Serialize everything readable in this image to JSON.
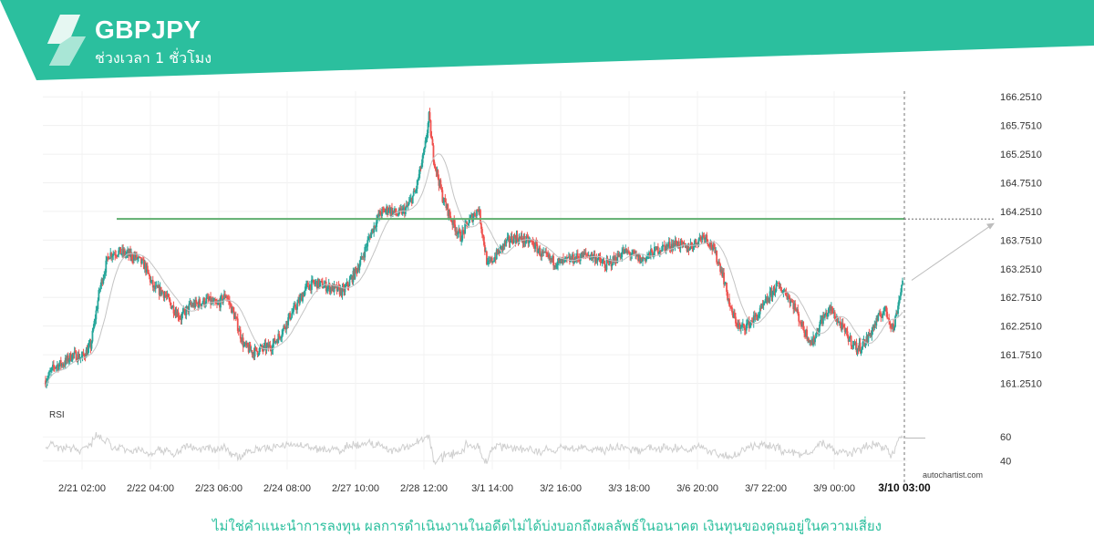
{
  "header": {
    "symbol": "GBPJPY",
    "timeframe": "ช่วงเวลา 1 ชั่วโมง"
  },
  "colors": {
    "brand": "#2bbf9e",
    "candle_up": "#26a69a",
    "candle_down": "#ef5350",
    "support_resistance_line": "#5fae6f",
    "moving_average": "#c4c4c4",
    "rsi_line": "#cfcfcf",
    "projection": "#bdbdbd"
  },
  "watermark": "autochartist.com",
  "disclaimer": "ไม่ใช่คำแนะนำการลงทุน ผลการดำเนินงานในอดีตไม่ได้บ่งบอกถึงผลลัพธ์ในอนาคต เงินทุนของคุณอยู่ในความเสี่ยง",
  "chart_data": {
    "type": "candlestick",
    "symbol": "GBPJPY",
    "timeframe": "1 hour",
    "ylim": [
      161.1,
      166.35
    ],
    "y_ticks": [
      "166.2510",
      "165.7510",
      "165.2510",
      "164.7510",
      "164.2510",
      "163.7510",
      "163.2510",
      "162.7510",
      "162.2510",
      "161.7510",
      "161.2510"
    ],
    "x_ticks": [
      "2/21 02:00",
      "2/22 04:00",
      "2/23 06:00",
      "2/24 08:00",
      "2/27 10:00",
      "2/28 12:00",
      "3/1 14:00",
      "3/2 16:00",
      "3/3 18:00",
      "3/6 20:00",
      "3/7 22:00",
      "3/9 00:00"
    ],
    "current_time_label": "3/10 03:00",
    "horizontal_level": 164.12,
    "projection": {
      "from": 163.05,
      "to": 164.05
    },
    "price_path": [
      [
        0,
        161.3
      ],
      [
        10,
        161.55
      ],
      [
        20,
        161.6
      ],
      [
        30,
        161.75
      ],
      [
        40,
        161.7
      ],
      [
        50,
        161.9
      ],
      [
        60,
        162.9
      ],
      [
        70,
        163.5
      ],
      [
        80,
        163.55
      ],
      [
        90,
        163.5
      ],
      [
        100,
        163.45
      ],
      [
        110,
        163.3
      ],
      [
        120,
        162.9
      ],
      [
        130,
        162.85
      ],
      [
        140,
        162.6
      ],
      [
        150,
        162.4
      ],
      [
        160,
        162.6
      ],
      [
        170,
        162.65
      ],
      [
        180,
        162.7
      ],
      [
        190,
        162.6
      ],
      [
        200,
        162.8
      ],
      [
        210,
        162.4
      ],
      [
        220,
        161.9
      ],
      [
        230,
        161.8
      ],
      [
        240,
        161.85
      ],
      [
        250,
        161.9
      ],
      [
        260,
        162.1
      ],
      [
        270,
        162.4
      ],
      [
        280,
        162.65
      ],
      [
        290,
        162.95
      ],
      [
        300,
        163.0
      ],
      [
        310,
        162.95
      ],
      [
        320,
        162.9
      ],
      [
        330,
        162.85
      ],
      [
        340,
        163.1
      ],
      [
        350,
        163.4
      ],
      [
        360,
        163.85
      ],
      [
        370,
        164.2
      ],
      [
        380,
        164.3
      ],
      [
        390,
        164.2
      ],
      [
        400,
        164.3
      ],
      [
        410,
        164.6
      ],
      [
        420,
        165.3
      ],
      [
        425,
        165.9
      ],
      [
        430,
        165.2
      ],
      [
        440,
        164.5
      ],
      [
        450,
        164.1
      ],
      [
        460,
        163.8
      ],
      [
        470,
        164.1
      ],
      [
        480,
        164.3
      ],
      [
        490,
        163.3
      ],
      [
        500,
        163.5
      ],
      [
        510,
        163.7
      ],
      [
        520,
        163.8
      ],
      [
        530,
        163.75
      ],
      [
        540,
        163.7
      ],
      [
        550,
        163.5
      ],
      [
        560,
        163.4
      ],
      [
        570,
        163.35
      ],
      [
        580,
        163.4
      ],
      [
        590,
        163.45
      ],
      [
        600,
        163.5
      ],
      [
        610,
        163.45
      ],
      [
        620,
        163.3
      ],
      [
        630,
        163.4
      ],
      [
        640,
        163.55
      ],
      [
        650,
        163.5
      ],
      [
        660,
        163.4
      ],
      [
        670,
        163.5
      ],
      [
        680,
        163.6
      ],
      [
        690,
        163.65
      ],
      [
        700,
        163.7
      ],
      [
        710,
        163.6
      ],
      [
        720,
        163.7
      ],
      [
        730,
        163.85
      ],
      [
        740,
        163.6
      ],
      [
        750,
        163.2
      ],
      [
        760,
        162.5
      ],
      [
        770,
        162.2
      ],
      [
        780,
        162.3
      ],
      [
        790,
        162.45
      ],
      [
        800,
        162.7
      ],
      [
        810,
        162.95
      ],
      [
        820,
        162.85
      ],
      [
        830,
        162.6
      ],
      [
        840,
        162.2
      ],
      [
        850,
        161.95
      ],
      [
        860,
        162.35
      ],
      [
        870,
        162.55
      ],
      [
        880,
        162.3
      ],
      [
        890,
        162.05
      ],
      [
        900,
        161.85
      ],
      [
        910,
        162.0
      ],
      [
        920,
        162.3
      ],
      [
        930,
        162.55
      ],
      [
        940,
        162.2
      ],
      [
        950,
        163.05
      ]
    ],
    "indicator": {
      "name": "RSI",
      "ylim": [
        33,
        73
      ],
      "y_ticks": [
        "60",
        "40"
      ]
    }
  }
}
